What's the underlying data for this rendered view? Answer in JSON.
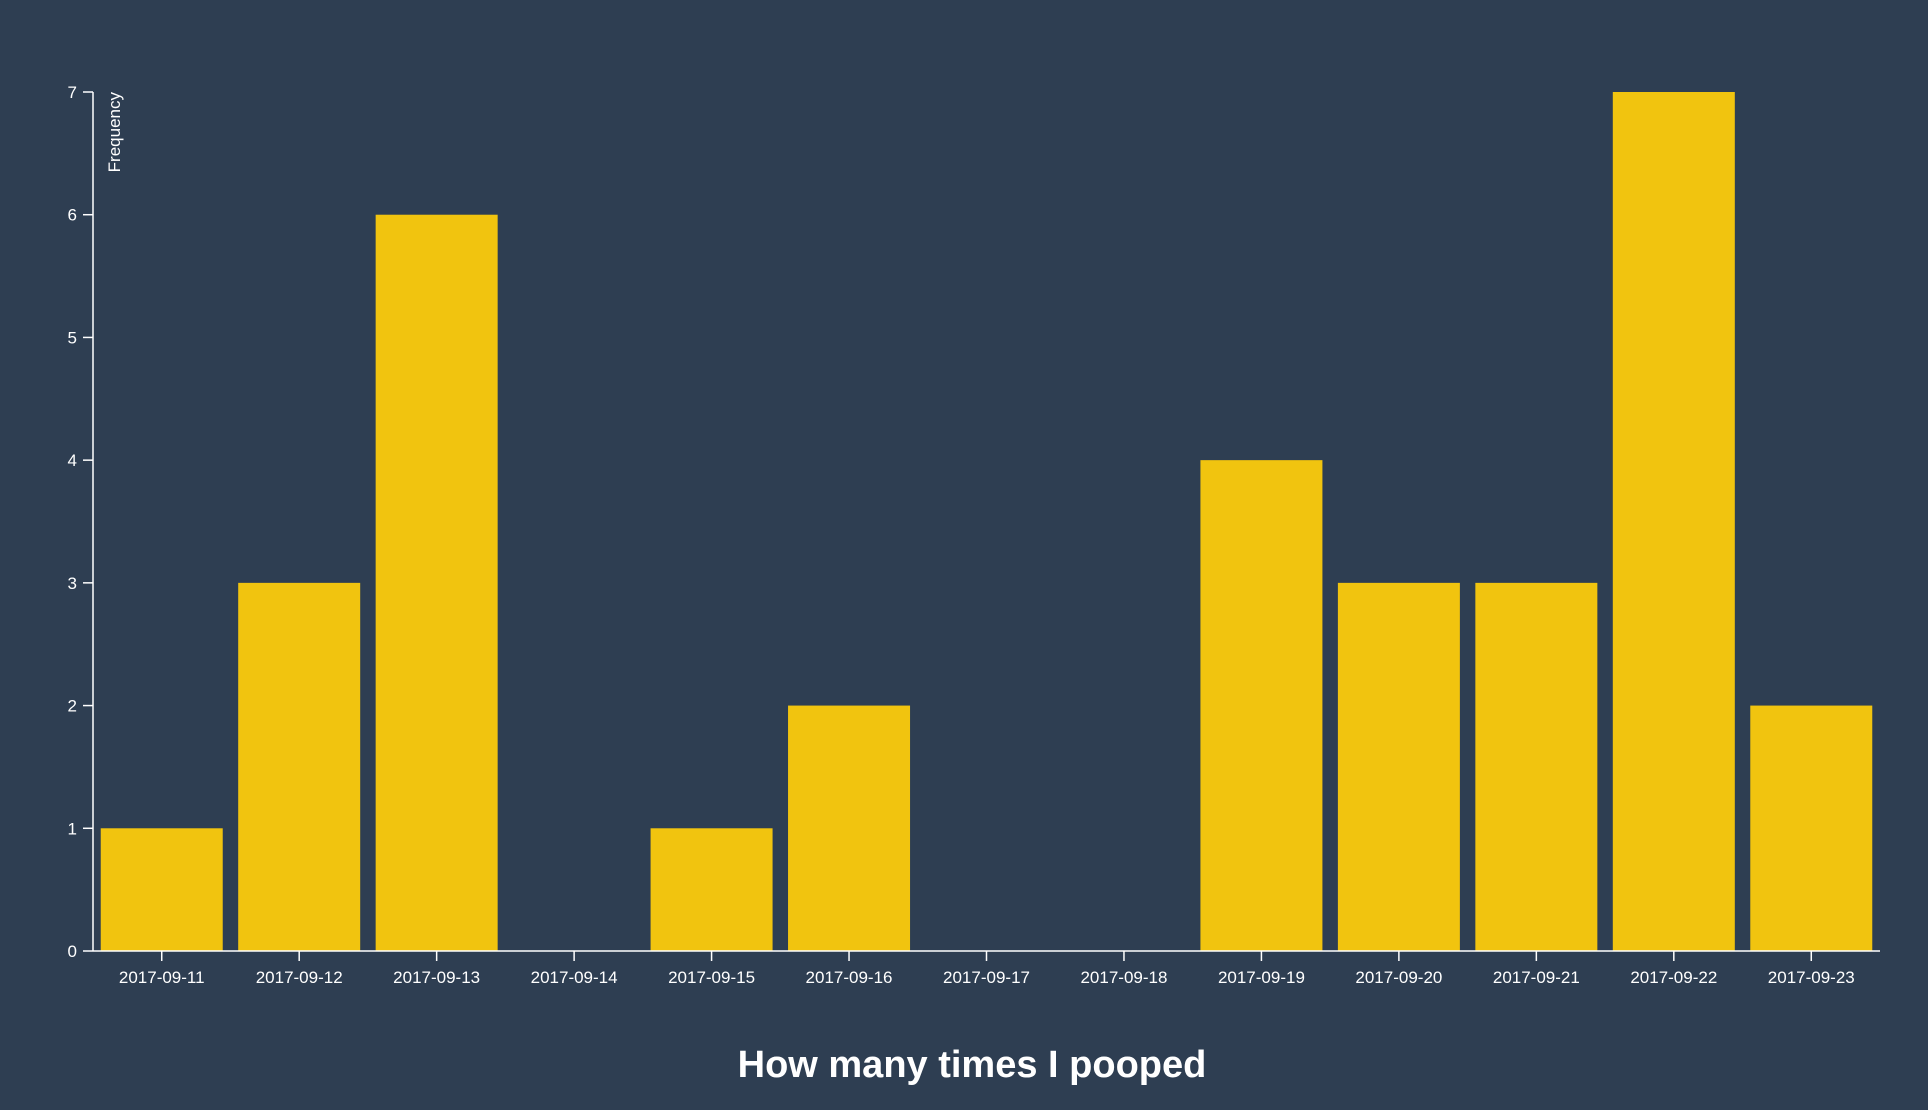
{
  "chart_data": {
    "type": "bar",
    "title": "How many times I pooped",
    "xlabel": "",
    "ylabel": "Frequency",
    "categories": [
      "2017-09-11",
      "2017-09-12",
      "2017-09-13",
      "2017-09-14",
      "2017-09-15",
      "2017-09-16",
      "2017-09-17",
      "2017-09-18",
      "2017-09-19",
      "2017-09-20",
      "2017-09-21",
      "2017-09-22",
      "2017-09-23"
    ],
    "values": [
      1,
      3,
      6,
      0,
      1,
      2,
      0,
      0,
      4,
      3,
      3,
      7,
      2
    ],
    "ylim": [
      0,
      7
    ],
    "yticks": [
      0,
      1,
      2,
      3,
      4,
      5,
      6,
      7
    ],
    "grid": false,
    "legend": "none"
  },
  "colors": {
    "background": "#2e3e52",
    "bar": "#f1c40f",
    "text": "#ffffff"
  }
}
